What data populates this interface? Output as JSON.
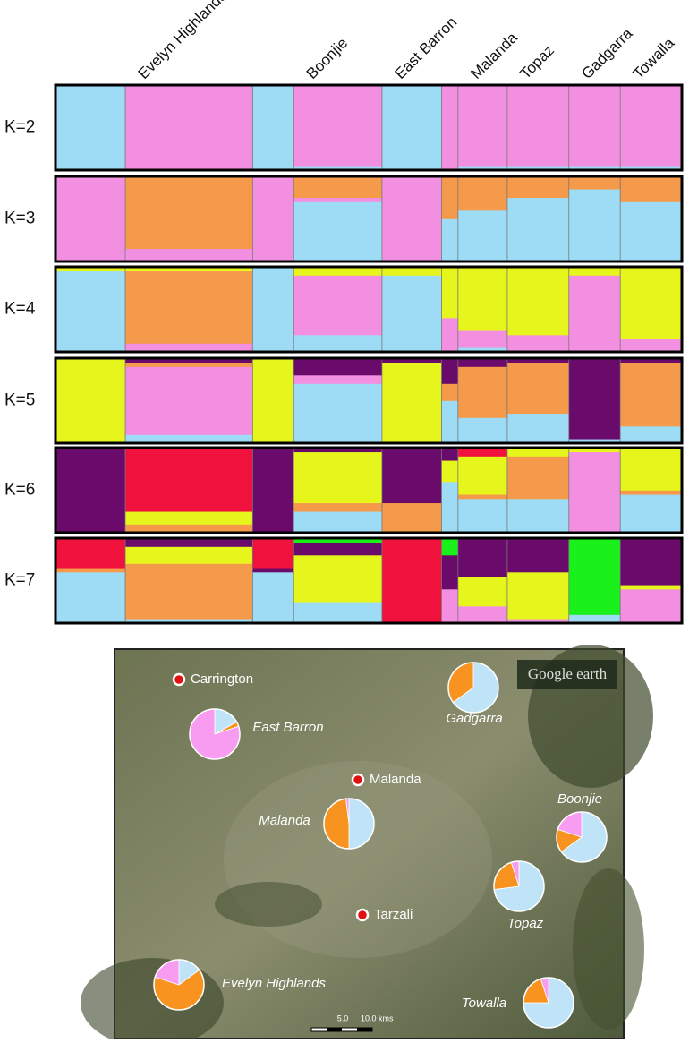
{
  "chart_data": [
    {
      "type": "bar",
      "stacked": true,
      "categories": [
        null,
        "Evelyn Highlands",
        null,
        "Boonjie",
        "East Barron",
        null,
        "Malanda",
        "Topaz",
        "Gadgarra",
        "Towalla"
      ],
      "n": [
        34,
        62,
        20,
        43,
        29,
        8,
        24,
        30,
        25,
        30
      ],
      "panels": [
        {
          "label": "K=2",
          "series": [
            {
              "color": "#9edcf5",
              "values": [
                100,
                0,
                100,
                5,
                100,
                0,
                5,
                5,
                5,
                5
              ]
            },
            {
              "color": "#f38fe0",
              "values": [
                0,
                100,
                0,
                95,
                0,
                100,
                95,
                95,
                95,
                95
              ]
            }
          ]
        },
        {
          "label": "K=3",
          "series": [
            {
              "color": "#9edcf5",
              "values": [
                0,
                0,
                0,
                70,
                0,
                50,
                60,
                75,
                85,
                70
              ]
            },
            {
              "color": "#f38fe0",
              "values": [
                100,
                15,
                100,
                5,
                100,
                0,
                0,
                0,
                0,
                0
              ]
            },
            {
              "color": "#f59a4a",
              "values": [
                0,
                85,
                0,
                25,
                0,
                50,
                40,
                25,
                15,
                30
              ]
            }
          ]
        },
        {
          "label": "K=4",
          "series": [
            {
              "color": "#9edcf5",
              "values": [
                95,
                0,
                100,
                20,
                90,
                0,
                5,
                0,
                0,
                0
              ]
            },
            {
              "color": "#f38fe0",
              "values": [
                0,
                10,
                0,
                70,
                0,
                40,
                20,
                20,
                90,
                15
              ]
            },
            {
              "color": "#f59a4a",
              "values": [
                0,
                85,
                0,
                0,
                0,
                0,
                0,
                0,
                0,
                0
              ]
            },
            {
              "color": "#e6f51c",
              "values": [
                5,
                5,
                0,
                10,
                10,
                60,
                75,
                80,
                10,
                85
              ]
            }
          ]
        },
        {
          "label": "K=5",
          "series": [
            {
              "color": "#9edcf5",
              "values": [
                0,
                10,
                0,
                70,
                0,
                50,
                30,
                35,
                5,
                20
              ]
            },
            {
              "color": "#f38fe0",
              "values": [
                0,
                80,
                0,
                10,
                0,
                0,
                0,
                0,
                0,
                0
              ]
            },
            {
              "color": "#f59a4a",
              "values": [
                0,
                5,
                0,
                0,
                0,
                20,
                60,
                60,
                0,
                75
              ]
            },
            {
              "color": "#e6f51c",
              "values": [
                100,
                0,
                100,
                0,
                95,
                0,
                0,
                0,
                0,
                0
              ]
            },
            {
              "color": "#6a0a6a",
              "values": [
                0,
                5,
                0,
                20,
                5,
                30,
                10,
                5,
                95,
                5
              ]
            }
          ]
        },
        {
          "label": "K=6",
          "series": [
            {
              "color": "#9edcf5",
              "values": [
                0,
                0,
                0,
                25,
                0,
                60,
                40,
                40,
                0,
                45
              ]
            },
            {
              "color": "#f38fe0",
              "values": [
                0,
                0,
                0,
                0,
                0,
                0,
                0,
                0,
                95,
                0
              ]
            },
            {
              "color": "#f59a4a",
              "values": [
                0,
                10,
                0,
                10,
                35,
                0,
                5,
                50,
                0,
                5
              ]
            },
            {
              "color": "#e6f51c",
              "values": [
                0,
                15,
                0,
                60,
                0,
                25,
                45,
                10,
                5,
                50
              ]
            },
            {
              "color": "#6a0a6a",
              "values": [
                100,
                0,
                100,
                5,
                65,
                15,
                0,
                0,
                0,
                0
              ]
            },
            {
              "color": "#f0123c",
              "values": [
                0,
                75,
                0,
                0,
                0,
                0,
                10,
                0,
                0,
                0
              ]
            }
          ]
        },
        {
          "label": "K=7",
          "series": [
            {
              "color": "#9edcf5",
              "values": [
                60,
                5,
                60,
                25,
                0,
                0,
                0,
                0,
                10,
                0
              ]
            },
            {
              "color": "#f38fe0",
              "values": [
                0,
                0,
                0,
                0,
                0,
                40,
                20,
                5,
                0,
                40
              ]
            },
            {
              "color": "#f59a4a",
              "values": [
                5,
                65,
                0,
                0,
                0,
                0,
                0,
                0,
                0,
                0
              ]
            },
            {
              "color": "#e6f51c",
              "values": [
                0,
                20,
                0,
                55,
                0,
                0,
                35,
                55,
                0,
                5
              ]
            },
            {
              "color": "#6a0a6a",
              "values": [
                0,
                10,
                5,
                15,
                0,
                40,
                45,
                40,
                0,
                55
              ]
            },
            {
              "color": "#f0123c",
              "values": [
                35,
                0,
                35,
                0,
                100,
                0,
                0,
                0,
                0,
                0
              ]
            },
            {
              "color": "#1af01a",
              "values": [
                0,
                0,
                0,
                5,
                0,
                20,
                0,
                0,
                90,
                0
              ]
            }
          ]
        }
      ]
    },
    {
      "type": "pie",
      "slice_colors": [
        "#bfe3f7",
        "#f7931e",
        "#f79cf0"
      ],
      "pies": [
        {
          "label": "East Barron",
          "values": [
            17,
            3,
            80
          ]
        },
        {
          "label": "Gadgarra",
          "values": [
            65,
            35,
            0
          ]
        },
        {
          "label": "Malanda",
          "values": [
            50,
            48,
            2
          ]
        },
        {
          "label": "Boonjie",
          "values": [
            65,
            15,
            20
          ]
        },
        {
          "label": "Topaz",
          "values": [
            73,
            22,
            5
          ]
        },
        {
          "label": "Towalla",
          "values": [
            75,
            20,
            5
          ]
        },
        {
          "label": "Evelyn Highlands",
          "values": [
            15,
            65,
            20
          ]
        }
      ],
      "places": [
        "Carrington",
        "Malanda",
        "Tarzali"
      ],
      "watermark": "Google earth",
      "scale_labels": [
        "5.0",
        "10.0 kms"
      ]
    }
  ]
}
